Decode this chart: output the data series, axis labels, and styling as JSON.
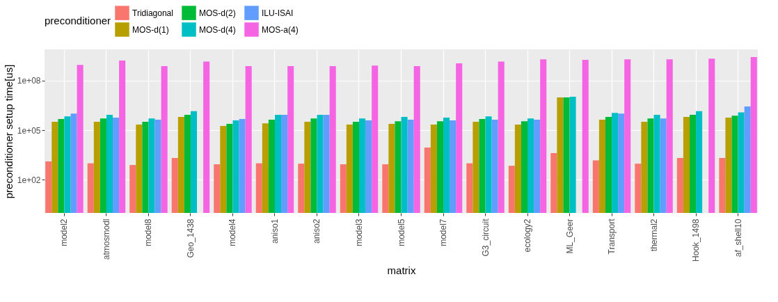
{
  "chart_data": {
    "type": "bar",
    "xlabel": "matrix",
    "ylabel": "preconditioner setup time[us]",
    "legend_title": "preconditioner",
    "legend": "top",
    "grid": true,
    "log": true,
    "categories": [
      "model2",
      "atmosmodl",
      "model8",
      "Geo_1438",
      "model4",
      "aniso1",
      "aniso2",
      "model3",
      "model5",
      "model7",
      "G3_circuit",
      "ecology2",
      "ML_Geer",
      "Transport",
      "thermal2",
      "Hook_1498",
      "af_shell10"
    ],
    "ylim": [
      1,
      7600000000.0
    ],
    "yticks": [
      {
        "value": 100,
        "label": "1e+02"
      },
      {
        "value": 100000,
        "label": "1e+05"
      },
      {
        "value": 100000000,
        "label": "1e+08"
      }
    ],
    "series": [
      {
        "name": "Tridiagonal",
        "color": "#f8766d",
        "values": [
          1300,
          1000,
          790,
          2100,
          870,
          1000,
          950,
          870,
          870,
          8900,
          1000,
          710,
          4100,
          1500,
          950,
          2100,
          2100
        ]
      },
      {
        "name": "MOS-d(1)",
        "color": "#b79f00",
        "values": [
          320000,
          320000,
          220000,
          630000,
          180000,
          260000,
          320000,
          220000,
          240000,
          220000,
          320000,
          220000,
          9500000,
          430000,
          320000,
          630000,
          580000
        ]
      },
      {
        "name": "MOS-d(2)",
        "color": "#00ba38",
        "values": [
          470000,
          510000,
          320000,
          850000,
          240000,
          430000,
          510000,
          320000,
          350000,
          350000,
          470000,
          350000,
          9500000,
          630000,
          510000,
          850000,
          760000
        ]
      },
      {
        "name": "MOS-d(4)",
        "color": "#00bfc4",
        "values": [
          690000,
          850000,
          510000,
          1400000,
          390000,
          850000,
          850000,
          510000,
          630000,
          580000,
          690000,
          510000,
          10500000,
          1100000,
          850000,
          1400000,
          1200000
        ]
      },
      {
        "name": "ILU-ISAI",
        "color": "#619cff",
        "values": [
          1000000,
          580000,
          430000,
          null,
          470000,
          850000,
          850000,
          390000,
          430000,
          390000,
          430000,
          430000,
          null,
          1000000,
          510000,
          null,
          2700000
        ]
      },
      {
        "name": "MOS-a(4)",
        "color": "#f564e3",
        "values": [
          890000000,
          1600000000,
          740000000,
          1400000000,
          740000000,
          740000000,
          740000000,
          810000000,
          740000000,
          1100000000,
          1400000000,
          1900000000,
          1800000000,
          1900000000,
          1900000000,
          2100000000,
          2600000000
        ]
      }
    ]
  }
}
